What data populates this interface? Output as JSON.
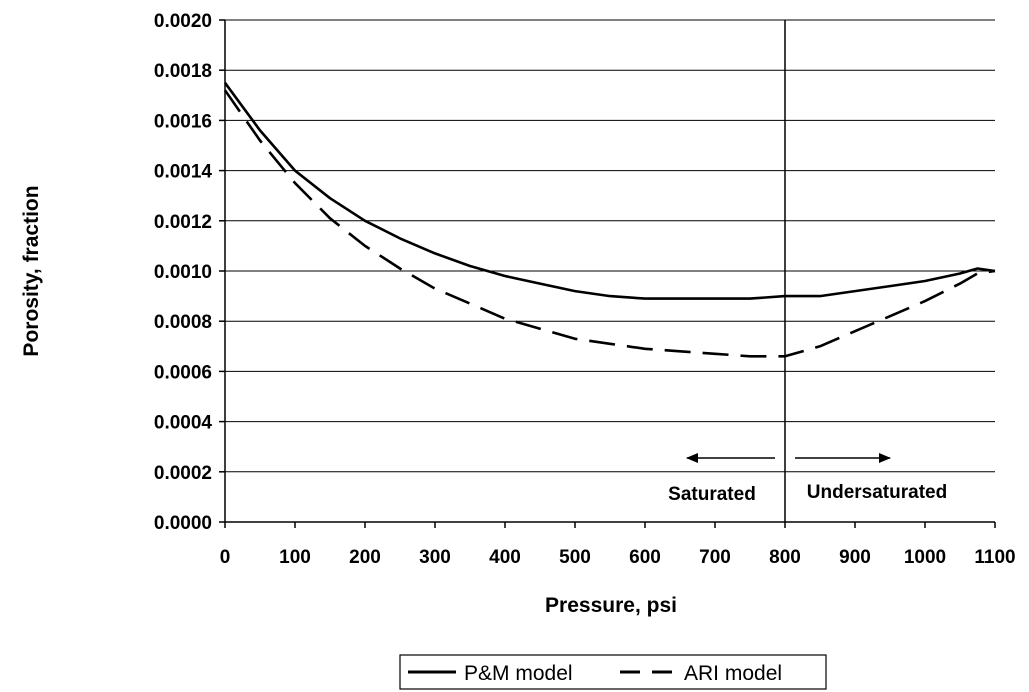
{
  "chart_data": {
    "type": "line",
    "xlabel": "Pressure, psi",
    "ylabel": "Porosity, fraction",
    "xlim": [
      0,
      1100
    ],
    "ylim": [
      0.0,
      0.002
    ],
    "x_ticks": [
      "0",
      "100",
      "200",
      "300",
      "400",
      "500",
      "600",
      "700",
      "800",
      "900",
      "1000",
      "1100"
    ],
    "y_ticks": [
      "0.0000",
      "0.0002",
      "0.0004",
      "0.0006",
      "0.0008",
      "0.0010",
      "0.0012",
      "0.0014",
      "0.0016",
      "0.0018",
      "0.0020"
    ],
    "grid": "horizontal",
    "legend_position": "bottom",
    "vertical_line_x": 800,
    "annotations": [
      {
        "text": "Saturated",
        "arrow": "left"
      },
      {
        "text": "Undersaturated",
        "arrow": "right"
      }
    ],
    "series": [
      {
        "name": "P&M model",
        "style": "solid",
        "x": [
          0,
          50,
          100,
          150,
          200,
          250,
          300,
          350,
          400,
          450,
          500,
          550,
          600,
          650,
          700,
          750,
          800,
          850,
          900,
          950,
          1000,
          1050,
          1075,
          1100
        ],
        "y": [
          0.00175,
          0.00156,
          0.0014,
          0.00129,
          0.0012,
          0.00113,
          0.00107,
          0.00102,
          0.00098,
          0.00095,
          0.00092,
          0.0009,
          0.00089,
          0.00089,
          0.00089,
          0.00089,
          0.0009,
          0.0009,
          0.00092,
          0.00094,
          0.00096,
          0.00099,
          0.00101,
          0.001
        ]
      },
      {
        "name": "ARI model",
        "style": "dashed",
        "x": [
          0,
          50,
          100,
          150,
          200,
          250,
          300,
          350,
          400,
          450,
          500,
          550,
          600,
          650,
          700,
          750,
          800,
          850,
          900,
          950,
          1000,
          1050,
          1075,
          1100
        ],
        "y": [
          0.00172,
          0.00152,
          0.00135,
          0.00121,
          0.0011,
          0.00101,
          0.00093,
          0.00087,
          0.00081,
          0.00077,
          0.00073,
          0.00071,
          0.00069,
          0.00068,
          0.00067,
          0.00066,
          0.00066,
          0.0007,
          0.00076,
          0.00082,
          0.00088,
          0.00095,
          0.00099,
          0.001
        ]
      }
    ]
  }
}
